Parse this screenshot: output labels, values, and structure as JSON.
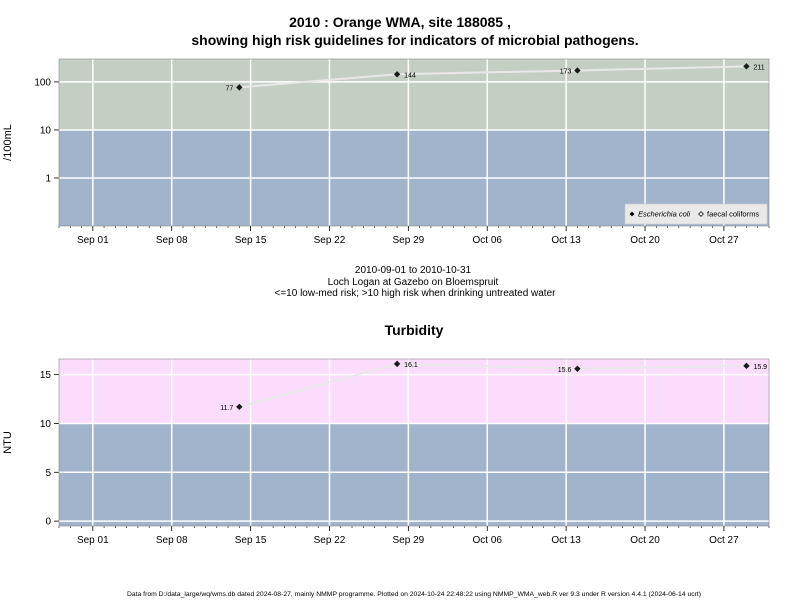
{
  "figure": {
    "title_line1": "2010 : Orange WMA, site 188085 ,",
    "title_line2": "showing high risk guidelines for indicators of microbial pathogens.",
    "middle_caption": {
      "line1": "2010-09-01 to 2010-10-31",
      "line2": "Loch Logan at Gazebo on Bloemspruit",
      "line3": "<=10 low-med risk; >10 high risk when drinking untreated water"
    },
    "footer": "Data from D:/data_large/wq/wms.db dated 2024-08-27, mainly NMMP programme. Plotted on 2024-10-24 22:48:22 using NMMP_WMA_web.R ver 9.3 under R version 4.4.1 (2024-06-14 ucrt)"
  },
  "colors": {
    "high_risk_microbial": "#c4cfc3",
    "high_risk_turbidity": "#fcdcfc",
    "low_risk": "#a2b4cc",
    "grid": "#ffffff",
    "series_line": "#e8e8e8",
    "point": "#1a1a1a"
  },
  "chart_data": [
    {
      "type": "scatter",
      "title": "",
      "ylabel": "/100mL",
      "y_scale": "log10",
      "ylim": [
        0.1,
        300
      ],
      "y_ticks": [
        1,
        10,
        100
      ],
      "y_tick_labels": [
        "1",
        "10",
        "100"
      ],
      "threshold": 10,
      "x_ticks": [
        "2010-09-01",
        "2010-09-08",
        "2010-09-15",
        "2010-09-22",
        "2010-09-29",
        "2010-10-06",
        "2010-10-13",
        "2010-10-20",
        "2010-10-27"
      ],
      "x_tick_labels": [
        "Sep 01",
        "Sep 08",
        "Sep 15",
        "Sep 22",
        "Sep 29",
        "Oct 06",
        "Oct 13",
        "Oct 20",
        "Oct 27"
      ],
      "xlim": [
        "2010-08-29",
        "2010-10-31"
      ],
      "grid": true,
      "legend_position": "bottom-right",
      "legend": [
        {
          "label": "Escherichia coli",
          "marker": "filled-diamond"
        },
        {
          "label": "faecal coliforms",
          "marker": "open-diamond"
        }
      ],
      "series": [
        {
          "name": "Escherichia coli",
          "points": [
            {
              "x": "2010-09-14",
              "y": 77,
              "label": "77"
            },
            {
              "x": "2010-09-28",
              "y": 144,
              "label": "144"
            },
            {
              "x": "2010-10-14",
              "y": 173,
              "label": "173"
            },
            {
              "x": "2010-10-29",
              "y": 211,
              "label": "211"
            }
          ]
        }
      ]
    },
    {
      "type": "scatter",
      "title": "Turbidity",
      "ylabel": "NTU",
      "y_scale": "linear",
      "ylim": [
        -0.5,
        16.6
      ],
      "y_ticks": [
        0,
        5,
        10,
        15
      ],
      "y_tick_labels": [
        "0",
        "5",
        "10",
        "15"
      ],
      "threshold": 10,
      "x_ticks": [
        "2010-09-01",
        "2010-09-08",
        "2010-09-15",
        "2010-09-22",
        "2010-09-29",
        "2010-10-06",
        "2010-10-13",
        "2010-10-20",
        "2010-10-27"
      ],
      "x_tick_labels": [
        "Sep 01",
        "Sep 08",
        "Sep 15",
        "Sep 22",
        "Sep 29",
        "Oct 06",
        "Oct 13",
        "Oct 20",
        "Oct 27"
      ],
      "xlim": [
        "2010-08-29",
        "2010-10-31"
      ],
      "grid": true,
      "series": [
        {
          "name": "Turbidity",
          "points": [
            {
              "x": "2010-09-14",
              "y": 11.7,
              "label": "11.7"
            },
            {
              "x": "2010-09-28",
              "y": 16.1,
              "label": "16.1"
            },
            {
              "x": "2010-10-14",
              "y": 15.6,
              "label": "15.6"
            },
            {
              "x": "2010-10-29",
              "y": 15.9,
              "label": "15.9"
            }
          ]
        }
      ]
    }
  ]
}
